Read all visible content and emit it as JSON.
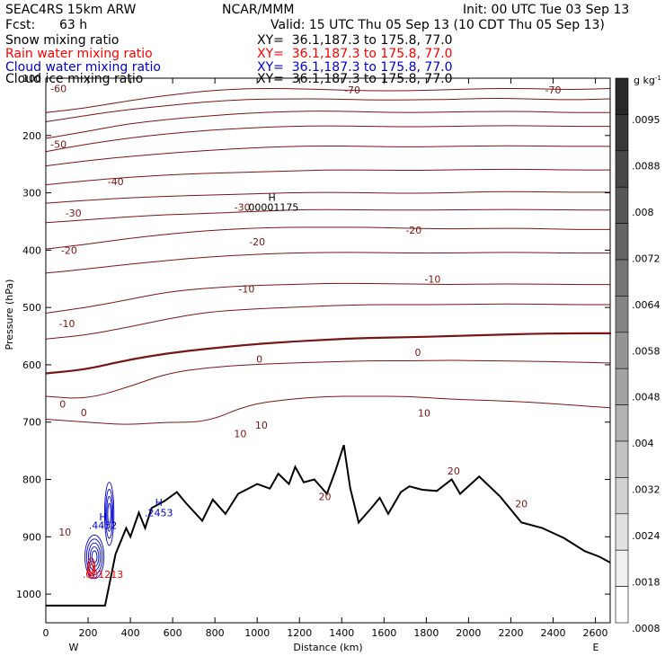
{
  "header": {
    "model": "SEAC4RS 15km ARW",
    "org": "NCAR/MMM",
    "init": "Init: 00 UTC Tue 03 Sep 13",
    "fcst_label": "Fcst:",
    "fcst_value": "63 h",
    "valid": "Valid: 15 UTC Thu 05 Sep 13 (10 CDT Thu 05 Sep 13)",
    "fields": [
      {
        "name": "Snow mixing ratio",
        "xy": "XY=  36.1,187.3 to 175.8, 77.0",
        "color": "#000000"
      },
      {
        "name": "Rain water mixing ratio",
        "xy": "XY=  36.1,187.3 to 175.8, 77.0",
        "color": "#ff0000"
      },
      {
        "name": "Cloud water mixing ratio",
        "xy": "XY=  36.1,187.3 to 175.8, 77.0",
        "color": "#0000cc"
      },
      {
        "name": "Cloud ice mixing ratio",
        "xy": "XY=  36.1,187.3 to 175.8, 77.0",
        "color": "#000000"
      }
    ]
  },
  "chart_data": {
    "type": "contour",
    "xlabel": "Distance (km)",
    "ylabel": "Pressure (hPa)",
    "xlim": [
      0,
      2670
    ],
    "ylim": [
      1050,
      100
    ],
    "x_ticks": [
      0,
      200,
      400,
      600,
      800,
      1000,
      1200,
      1400,
      1600,
      1800,
      2000,
      2200,
      2400,
      2600
    ],
    "y_ticks": [
      200,
      300,
      400,
      500,
      600,
      700,
      800,
      900,
      1000
    ],
    "y_top_label": "100",
    "x_end_labels": {
      "left": "W",
      "right": "E"
    },
    "isotherm_color": "#7a1515",
    "isotherms": [
      {
        "t": -70,
        "p": [
          160,
          152,
          140,
          130,
          122,
          118,
          118,
          120,
          122,
          122,
          120,
          118,
          118,
          120,
          118
        ]
      },
      {
        "t": -60,
        "p": [
          176,
          165,
          155,
          148,
          141,
          137,
          136,
          136,
          138,
          138,
          137,
          135,
          136,
          138,
          136
        ]
      },
      {
        "t": -50,
        "p": [
          205,
          193,
          180,
          172,
          166,
          161,
          158,
          157,
          159,
          160,
          159,
          158,
          158,
          160,
          160
        ]
      },
      {
        "t": -45,
        "p": [
          228,
          215,
          205,
          197,
          191,
          187,
          184,
          183,
          184,
          185,
          184,
          183,
          183,
          184,
          184
        ]
      },
      {
        "t": -40,
        "p": [
          253,
          244,
          237,
          231,
          226,
          222,
          219,
          218,
          219,
          220,
          219,
          218,
          218,
          219,
          219
        ]
      },
      {
        "t": -35,
        "p": [
          286,
          279,
          273,
          269,
          266,
          264,
          262,
          260,
          260,
          261,
          260,
          259,
          259,
          260,
          260
        ]
      },
      {
        "t": -30,
        "p": [
          318,
          313,
          309,
          306,
          304,
          302,
          300,
          299,
          300,
          301,
          300,
          298,
          298,
          299,
          299
        ]
      },
      {
        "t": -25,
        "p": [
          352,
          347,
          342,
          338,
          336,
          333,
          330,
          329,
          330,
          330,
          330,
          329,
          329,
          330,
          330
        ]
      },
      {
        "t": -20,
        "p": [
          398,
          390,
          380,
          372,
          366,
          362,
          360,
          360,
          360,
          362,
          363,
          362,
          362,
          364,
          364
        ]
      },
      {
        "t": -15,
        "p": [
          440,
          433,
          425,
          418,
          412,
          408,
          405,
          404,
          404,
          405,
          405,
          404,
          404,
          405,
          405
        ]
      },
      {
        "t": -10,
        "p": [
          510,
          500,
          487,
          473,
          466,
          462,
          460,
          458,
          458,
          459,
          460,
          459,
          459,
          460,
          460
        ]
      },
      {
        "t": -5,
        "p": [
          555,
          548,
          535,
          520,
          508,
          503,
          500,
          497,
          495,
          495,
          495,
          494,
          494,
          495,
          495
        ]
      },
      {
        "t": 0,
        "p": [
          615,
          608,
          592,
          580,
          572,
          565,
          560,
          556,
          553,
          552,
          550,
          548,
          546,
          545,
          545
        ]
      },
      {
        "t": 5,
        "p": [
          655,
          660,
          640,
          615,
          605,
          600,
          597,
          595,
          593,
          593,
          592,
          593,
          594,
          595,
          597
        ]
      },
      {
        "t": 10,
        "p": [
          695,
          700,
          705,
          700,
          700,
          670,
          660,
          655,
          655,
          655,
          660,
          662,
          665,
          670,
          675
        ]
      }
    ],
    "terrain": {
      "x": [
        0,
        280,
        330,
        380,
        400,
        440,
        470,
        500,
        560,
        620,
        660,
        740,
        790,
        850,
        910,
        1000,
        1060,
        1100,
        1150,
        1180,
        1220,
        1270,
        1330,
        1370,
        1410,
        1440,
        1480,
        1540,
        1580,
        1620,
        1680,
        1720,
        1780,
        1850,
        1920,
        1960,
        2050,
        2150,
        2250,
        2350,
        2450,
        2550,
        2620,
        2670
      ],
      "p": [
        1020,
        1020,
        930,
        885,
        900,
        858,
        885,
        850,
        838,
        822,
        840,
        872,
        835,
        860,
        825,
        808,
        816,
        790,
        808,
        778,
        805,
        800,
        825,
        785,
        740,
        815,
        875,
        850,
        832,
        860,
        822,
        812,
        818,
        820,
        800,
        825,
        795,
        830,
        875,
        885,
        902,
        925,
        935,
        945
      ]
    },
    "contour_labels": [
      {
        "x": 60,
        "p": 118,
        "text": "-60",
        "color": "#7a1515"
      },
      {
        "x": 1450,
        "p": 120,
        "text": "-70",
        "color": "#7a1515"
      },
      {
        "x": 2400,
        "p": 120,
        "text": "-70",
        "color": "#7a1515"
      },
      {
        "x": 60,
        "p": 215,
        "text": "-50",
        "color": "#7a1515"
      },
      {
        "x": 330,
        "p": 280,
        "text": "-40",
        "color": "#7a1515"
      },
      {
        "x": 130,
        "p": 335,
        "text": "-30",
        "color": "#7a1515"
      },
      {
        "x": 930,
        "p": 325,
        "text": "-30",
        "color": "#7a1515"
      },
      {
        "x": 1000,
        "p": 385,
        "text": "-20",
        "color": "#7a1515"
      },
      {
        "x": 1740,
        "p": 365,
        "text": "-20",
        "color": "#7a1515"
      },
      {
        "x": 110,
        "p": 400,
        "text": "-20",
        "color": "#7a1515"
      },
      {
        "x": 950,
        "p": 468,
        "text": "-10",
        "color": "#7a1515"
      },
      {
        "x": 1830,
        "p": 450,
        "text": "-10",
        "color": "#7a1515"
      },
      {
        "x": 100,
        "p": 528,
        "text": "-10",
        "color": "#7a1515"
      },
      {
        "x": 1760,
        "p": 578,
        "text": "0",
        "color": "#7a1515"
      },
      {
        "x": 1010,
        "p": 590,
        "text": "0",
        "color": "#7a1515"
      },
      {
        "x": 80,
        "p": 668,
        "text": "0",
        "color": "#7a1515"
      },
      {
        "x": 180,
        "p": 683,
        "text": "0",
        "color": "#7a1515"
      },
      {
        "x": 1790,
        "p": 684,
        "text": "10",
        "color": "#7a1515"
      },
      {
        "x": 1020,
        "p": 705,
        "text": "10",
        "color": "#7a1515"
      },
      {
        "x": 920,
        "p": 720,
        "text": "10",
        "color": "#7a1515"
      },
      {
        "x": 1320,
        "p": 830,
        "text": "20",
        "color": "#7a1515"
      },
      {
        "x": 1930,
        "p": 785,
        "text": "20",
        "color": "#7a1515"
      },
      {
        "x": 2250,
        "p": 842,
        "text": "20",
        "color": "#7a1515"
      },
      {
        "x": 90,
        "p": 892,
        "text": "10",
        "color": "#7a1515"
      },
      {
        "x": 1070,
        "p": 308,
        "text": "H",
        "color": "#000000"
      },
      {
        "x": 1070,
        "p": 325,
        "text": ".00001175",
        "color": "#000000"
      },
      {
        "x": 270,
        "p": 865,
        "text": "H",
        "color": "#0000cc"
      },
      {
        "x": 270,
        "p": 880,
        "text": ".4452",
        "color": "#0000cc"
      },
      {
        "x": 535,
        "p": 840,
        "text": "H",
        "color": "#0000cc"
      },
      {
        "x": 535,
        "p": 858,
        "text": ".2453",
        "color": "#0000cc"
      },
      {
        "x": 270,
        "p": 965,
        "text": ".001213",
        "color": "#ff0000"
      }
    ],
    "colorbar": {
      "unit": "g kg",
      "unit_sup": "-1",
      "labels": [
        ".0095",
        ".0088",
        ".008",
        ".0072",
        ".0064",
        ".0058",
        ".0048",
        ".004",
        ".0032",
        ".0024",
        ".0018",
        ".0008"
      ]
    }
  }
}
